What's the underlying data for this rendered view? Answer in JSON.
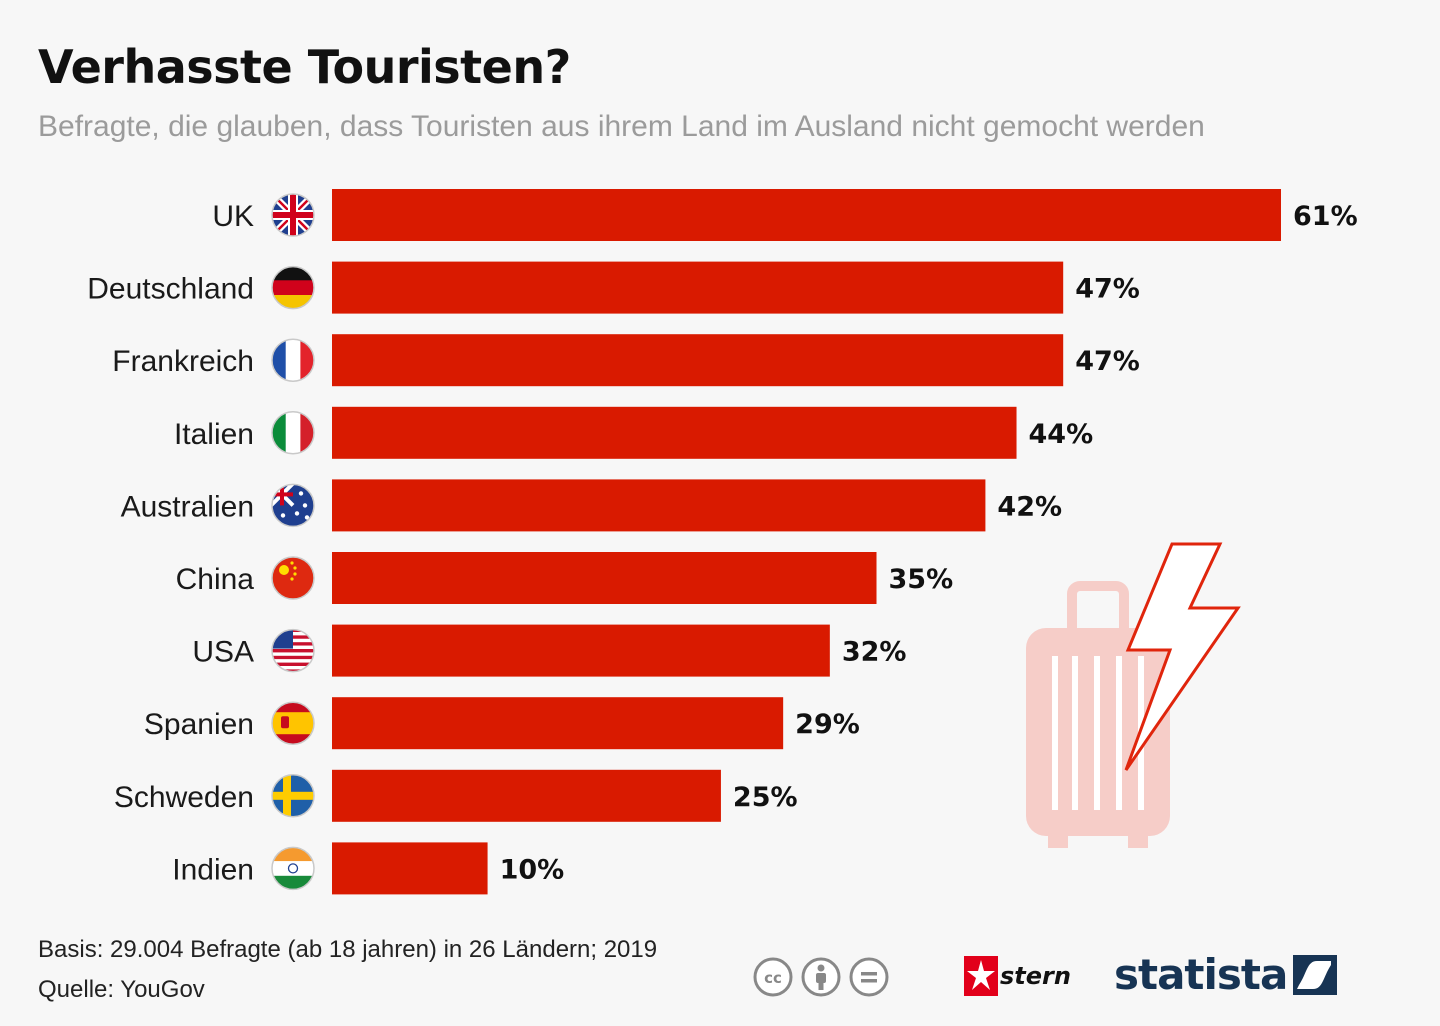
{
  "header": {
    "title": "Verhasste Touristen?",
    "subtitle": "Befragte, die glauben, dass Touristen aus ihrem Land im Ausland nicht gemocht werden"
  },
  "chart_data": {
    "type": "bar",
    "orientation": "horizontal",
    "title": "Verhasste Touristen?",
    "subtitle": "Befragte, die glauben, dass Touristen aus ihrem Land im Ausland nicht gemocht werden",
    "categories": [
      "UK",
      "Deutschland",
      "Frankreich",
      "Italien",
      "Australien",
      "China",
      "USA",
      "Spanien",
      "Schweden",
      "Indien"
    ],
    "flags": [
      "uk-flag-icon",
      "germany-flag-icon",
      "france-flag-icon",
      "italy-flag-icon",
      "australia-flag-icon",
      "china-flag-icon",
      "usa-flag-icon",
      "spain-flag-icon",
      "sweden-flag-icon",
      "india-flag-icon"
    ],
    "values": [
      61,
      47,
      47,
      44,
      42,
      35,
      32,
      29,
      25,
      10
    ],
    "value_labels": [
      "61%",
      "47%",
      "47%",
      "44%",
      "42%",
      "35%",
      "32%",
      "29%",
      "25%",
      "10%"
    ],
    "unit": "%",
    "xlim": [
      0,
      61
    ],
    "grid": false,
    "bar_color": "#d91a00",
    "decoration": "suitcase-lightning-icon"
  },
  "footer": {
    "basis": "Basis: 29.004 Befragte (ab 18 jahren) in 26 Ländern; 2019",
    "source": "Quelle: YouGov"
  },
  "branding": {
    "stern": "stern",
    "statista": "statista"
  },
  "colors": {
    "bar": "#d91a00",
    "suitcase": "#f6cdc8",
    "statista_navy": "#173454"
  }
}
